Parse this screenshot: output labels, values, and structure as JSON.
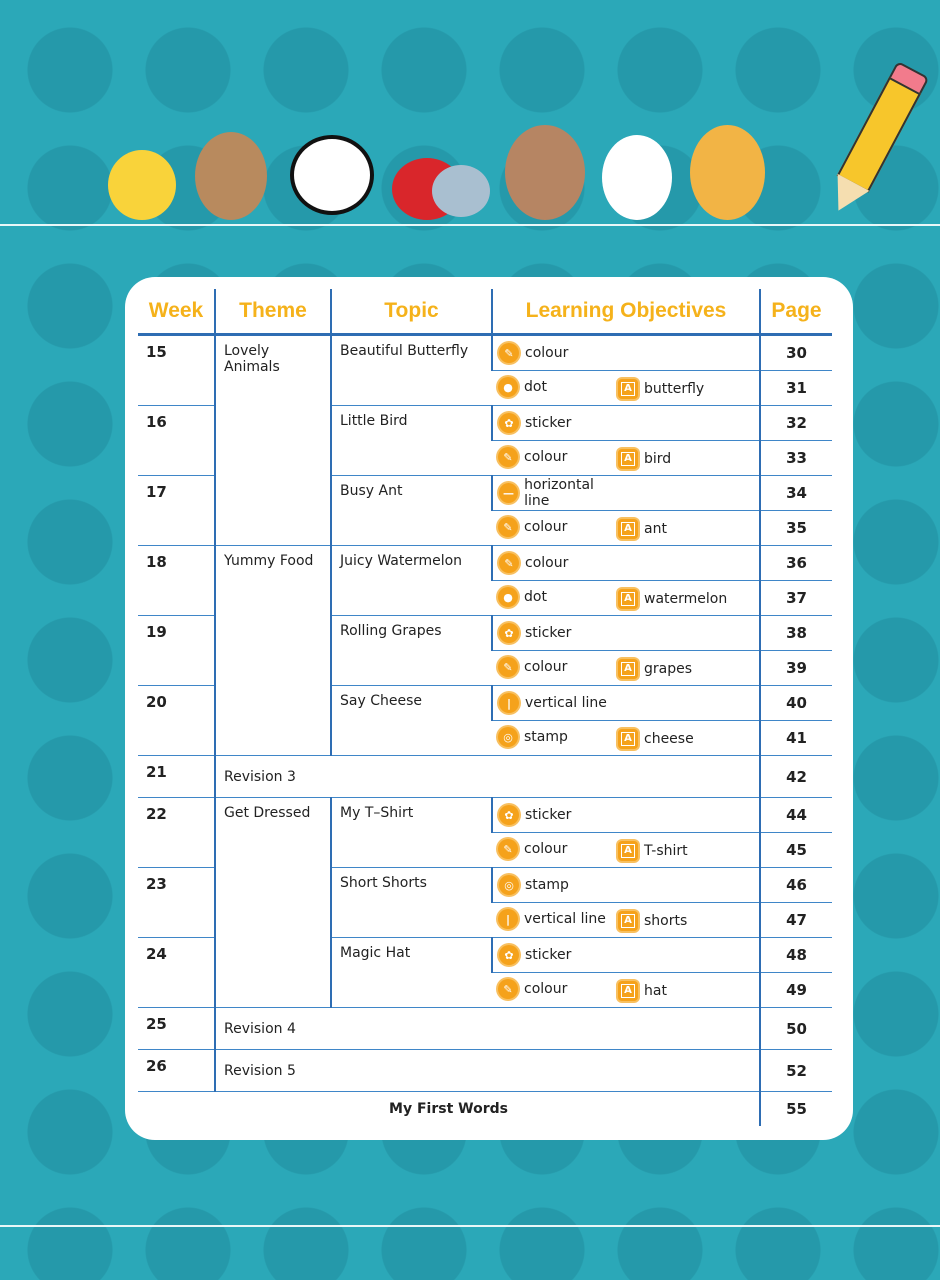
{
  "header": {
    "columns": [
      "Week",
      "Theme",
      "Topic",
      "Learning Objectives",
      "Page"
    ]
  },
  "colors": {
    "background": "#2ba8b8",
    "heading": "#f5b21b",
    "rule": "#2e6db3",
    "icon": "#f5a21b"
  },
  "icons": {
    "colour": "crayon-icon",
    "dot": "dot-icon",
    "sticker": "sticker-icon",
    "horizontal": "horizontal-line-icon",
    "vertical": "vertical-line-icon",
    "stamp": "stamp-icon",
    "word": "word-card-icon"
  },
  "groups": [
    {
      "theme": "Lovely Animals",
      "weeks": [
        {
          "week": "15",
          "topic": "Beautiful Butterfly",
          "lines": [
            {
              "objs": [
                {
                  "icon": "colour",
                  "label": "colour"
                }
              ],
              "page": "30"
            },
            {
              "objs": [
                {
                  "icon": "dot",
                  "label": "dot"
                },
                {
                  "icon": "word",
                  "label": "butterfly"
                }
              ],
              "page": "31"
            }
          ]
        },
        {
          "week": "16",
          "topic": "Little Bird",
          "lines": [
            {
              "objs": [
                {
                  "icon": "sticker",
                  "label": "sticker"
                }
              ],
              "page": "32"
            },
            {
              "objs": [
                {
                  "icon": "colour",
                  "label": "colour"
                },
                {
                  "icon": "word",
                  "label": "bird"
                }
              ],
              "page": "33"
            }
          ]
        },
        {
          "week": "17",
          "topic": "Busy Ant",
          "lines": [
            {
              "objs": [
                {
                  "icon": "horizontal",
                  "label": "horizontal line"
                }
              ],
              "page": "34"
            },
            {
              "objs": [
                {
                  "icon": "colour",
                  "label": "colour"
                },
                {
                  "icon": "word",
                  "label": "ant"
                }
              ],
              "page": "35"
            }
          ]
        }
      ]
    },
    {
      "theme": "Yummy Food",
      "weeks": [
        {
          "week": "18",
          "topic": "Juicy Watermelon",
          "lines": [
            {
              "objs": [
                {
                  "icon": "colour",
                  "label": "colour"
                }
              ],
              "page": "36"
            },
            {
              "objs": [
                {
                  "icon": "dot",
                  "label": "dot"
                },
                {
                  "icon": "word",
                  "label": "watermelon"
                }
              ],
              "page": "37"
            }
          ]
        },
        {
          "week": "19",
          "topic": "Rolling Grapes",
          "lines": [
            {
              "objs": [
                {
                  "icon": "sticker",
                  "label": "sticker"
                }
              ],
              "page": "38"
            },
            {
              "objs": [
                {
                  "icon": "colour",
                  "label": "colour"
                },
                {
                  "icon": "word",
                  "label": "grapes"
                }
              ],
              "page": "39"
            }
          ]
        },
        {
          "week": "20",
          "topic": "Say Cheese",
          "lines": [
            {
              "objs": [
                {
                  "icon": "vertical",
                  "label": "vertical line"
                }
              ],
              "page": "40"
            },
            {
              "objs": [
                {
                  "icon": "stamp",
                  "label": "stamp"
                },
                {
                  "icon": "word",
                  "label": "cheese"
                }
              ],
              "page": "41"
            }
          ]
        }
      ]
    },
    {
      "revision": true,
      "week": "21",
      "label": "Revision 3",
      "page": "42"
    },
    {
      "theme": "Get Dressed",
      "weeks": [
        {
          "week": "22",
          "topic": "My T–Shirt",
          "lines": [
            {
              "objs": [
                {
                  "icon": "sticker",
                  "label": "sticker"
                }
              ],
              "page": "44"
            },
            {
              "objs": [
                {
                  "icon": "colour",
                  "label": "colour"
                },
                {
                  "icon": "word",
                  "label": "T-shirt"
                }
              ],
              "page": "45"
            }
          ]
        },
        {
          "week": "23",
          "topic": "Short Shorts",
          "lines": [
            {
              "objs": [
                {
                  "icon": "stamp",
                  "label": "stamp"
                }
              ],
              "page": "46"
            },
            {
              "objs": [
                {
                  "icon": "vertical",
                  "label": "vertical line"
                },
                {
                  "icon": "word",
                  "label": "shorts"
                }
              ],
              "page": "47"
            }
          ]
        },
        {
          "week": "24",
          "topic": "Magic Hat",
          "lines": [
            {
              "objs": [
                {
                  "icon": "sticker",
                  "label": "sticker"
                }
              ],
              "page": "48"
            },
            {
              "objs": [
                {
                  "icon": "colour",
                  "label": "colour"
                },
                {
                  "icon": "word",
                  "label": "hat"
                }
              ],
              "page": "49"
            }
          ]
        }
      ]
    },
    {
      "revision": true,
      "week": "25",
      "label": "Revision 4",
      "page": "50"
    },
    {
      "revision": true,
      "week": "26",
      "label": "Revision 5",
      "page": "52"
    }
  ],
  "footer": {
    "label": "My First Words",
    "page": "55"
  }
}
